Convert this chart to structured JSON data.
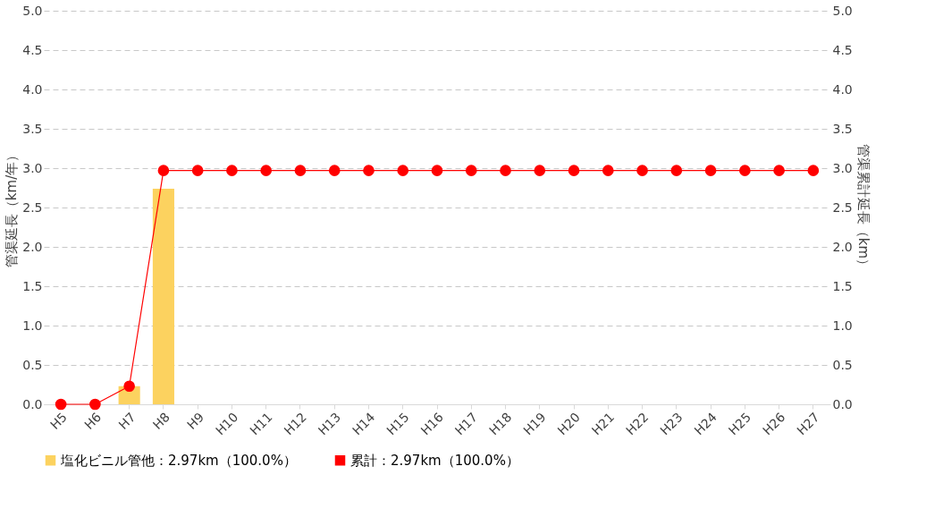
{
  "chart_data": {
    "type": "bar",
    "categories": [
      "H5",
      "H6",
      "H7",
      "H8",
      "H9",
      "H10",
      "H11",
      "H12",
      "H13",
      "H14",
      "H15",
      "H16",
      "H17",
      "H18",
      "H19",
      "H20",
      "H21",
      "H22",
      "H23",
      "H24",
      "H25",
      "H26",
      "H27"
    ],
    "ylabel": "管渠延長（km/年）",
    "y2label": "管渠累計延長（km）",
    "series": [
      {
        "name": "塩化ビニル管他：2.97km（100.0%）",
        "color": "#fcd25f",
        "values": [
          0,
          0,
          0.23,
          2.74,
          0,
          0,
          0,
          0,
          0,
          0,
          0,
          0,
          0,
          0,
          0,
          0,
          0,
          0,
          0,
          0,
          0,
          0,
          0
        ]
      },
      {
        "name": "累計：2.97km（100.0%）",
        "color": "#ff0000",
        "type": "line",
        "axis": "y2",
        "marker": "circle",
        "values": [
          0,
          0,
          0.23,
          2.97,
          2.97,
          2.97,
          2.97,
          2.97,
          2.97,
          2.97,
          2.97,
          2.97,
          2.97,
          2.97,
          2.97,
          2.97,
          2.97,
          2.97,
          2.97,
          2.97,
          2.97,
          2.97,
          2.97
        ]
      }
    ],
    "ylim": [
      0,
      5
    ],
    "yticks": [
      {
        "value": 0,
        "label": "0.0"
      },
      {
        "value": 0.5,
        "label": "0.5"
      },
      {
        "value": 1,
        "label": "1.0"
      },
      {
        "value": 1.5,
        "label": "1.5"
      },
      {
        "value": 2,
        "label": "2.0"
      },
      {
        "value": 2.5,
        "label": "2.5"
      },
      {
        "value": 3,
        "label": "3.0"
      },
      {
        "value": 3.5,
        "label": "3.5"
      },
      {
        "value": 4,
        "label": "4.0"
      },
      {
        "value": 4.5,
        "label": "4.5"
      },
      {
        "value": 5,
        "label": "5.0"
      }
    ],
    "y2lim": [
      0,
      5
    ],
    "y2ticks": [
      {
        "value": 0,
        "label": "0.0"
      },
      {
        "value": 0.5,
        "label": "0.5"
      },
      {
        "value": 1,
        "label": "1.0"
      },
      {
        "value": 1.5,
        "label": "1.5"
      },
      {
        "value": 2,
        "label": "2.0"
      },
      {
        "value": 2.5,
        "label": "2.5"
      },
      {
        "value": 3,
        "label": "3.0"
      },
      {
        "value": 3.5,
        "label": "3.5"
      },
      {
        "value": 4,
        "label": "4.0"
      },
      {
        "value": 4.5,
        "label": "4.5"
      },
      {
        "value": 5,
        "label": "5.0"
      }
    ],
    "grid": "y",
    "legend": "bottom"
  }
}
